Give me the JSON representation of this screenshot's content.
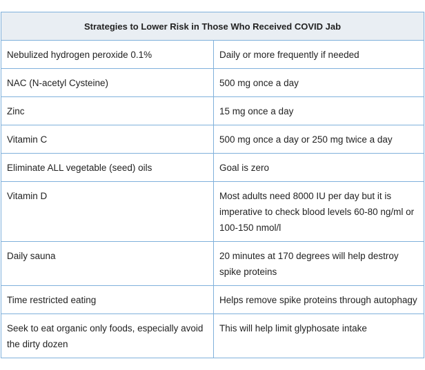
{
  "table": {
    "title": "Strategies to Lower Risk in Those Who Received COVID Jab",
    "rows": [
      [
        "Nebulized hydrogen peroxide 0.1%",
        "Daily or more frequently if needed"
      ],
      [
        "NAC (N-acetyl Cysteine)",
        "500 mg once a day"
      ],
      [
        "Zinc",
        "15 mg once a day"
      ],
      [
        "Vitamin C",
        "500 mg once a day or 250 mg twice a day"
      ],
      [
        "Eliminate ALL vegetable (seed) oils",
        "Goal is zero"
      ],
      [
        "Vitamin D",
        "Most adults need 8000 IU per day but it is imperative to check blood levels 60-80 ng/ml or 100-150 nmol/l"
      ],
      [
        "Daily sauna",
        "20 minutes at 170 degrees will help destroy spike proteins"
      ],
      [
        "Time restricted eating",
        "Helps remove spike proteins through autophagy"
      ],
      [
        "Seek to eat organic only foods, especially avoid the dirty dozen",
        "This will help limit glyphosate intake"
      ]
    ]
  }
}
